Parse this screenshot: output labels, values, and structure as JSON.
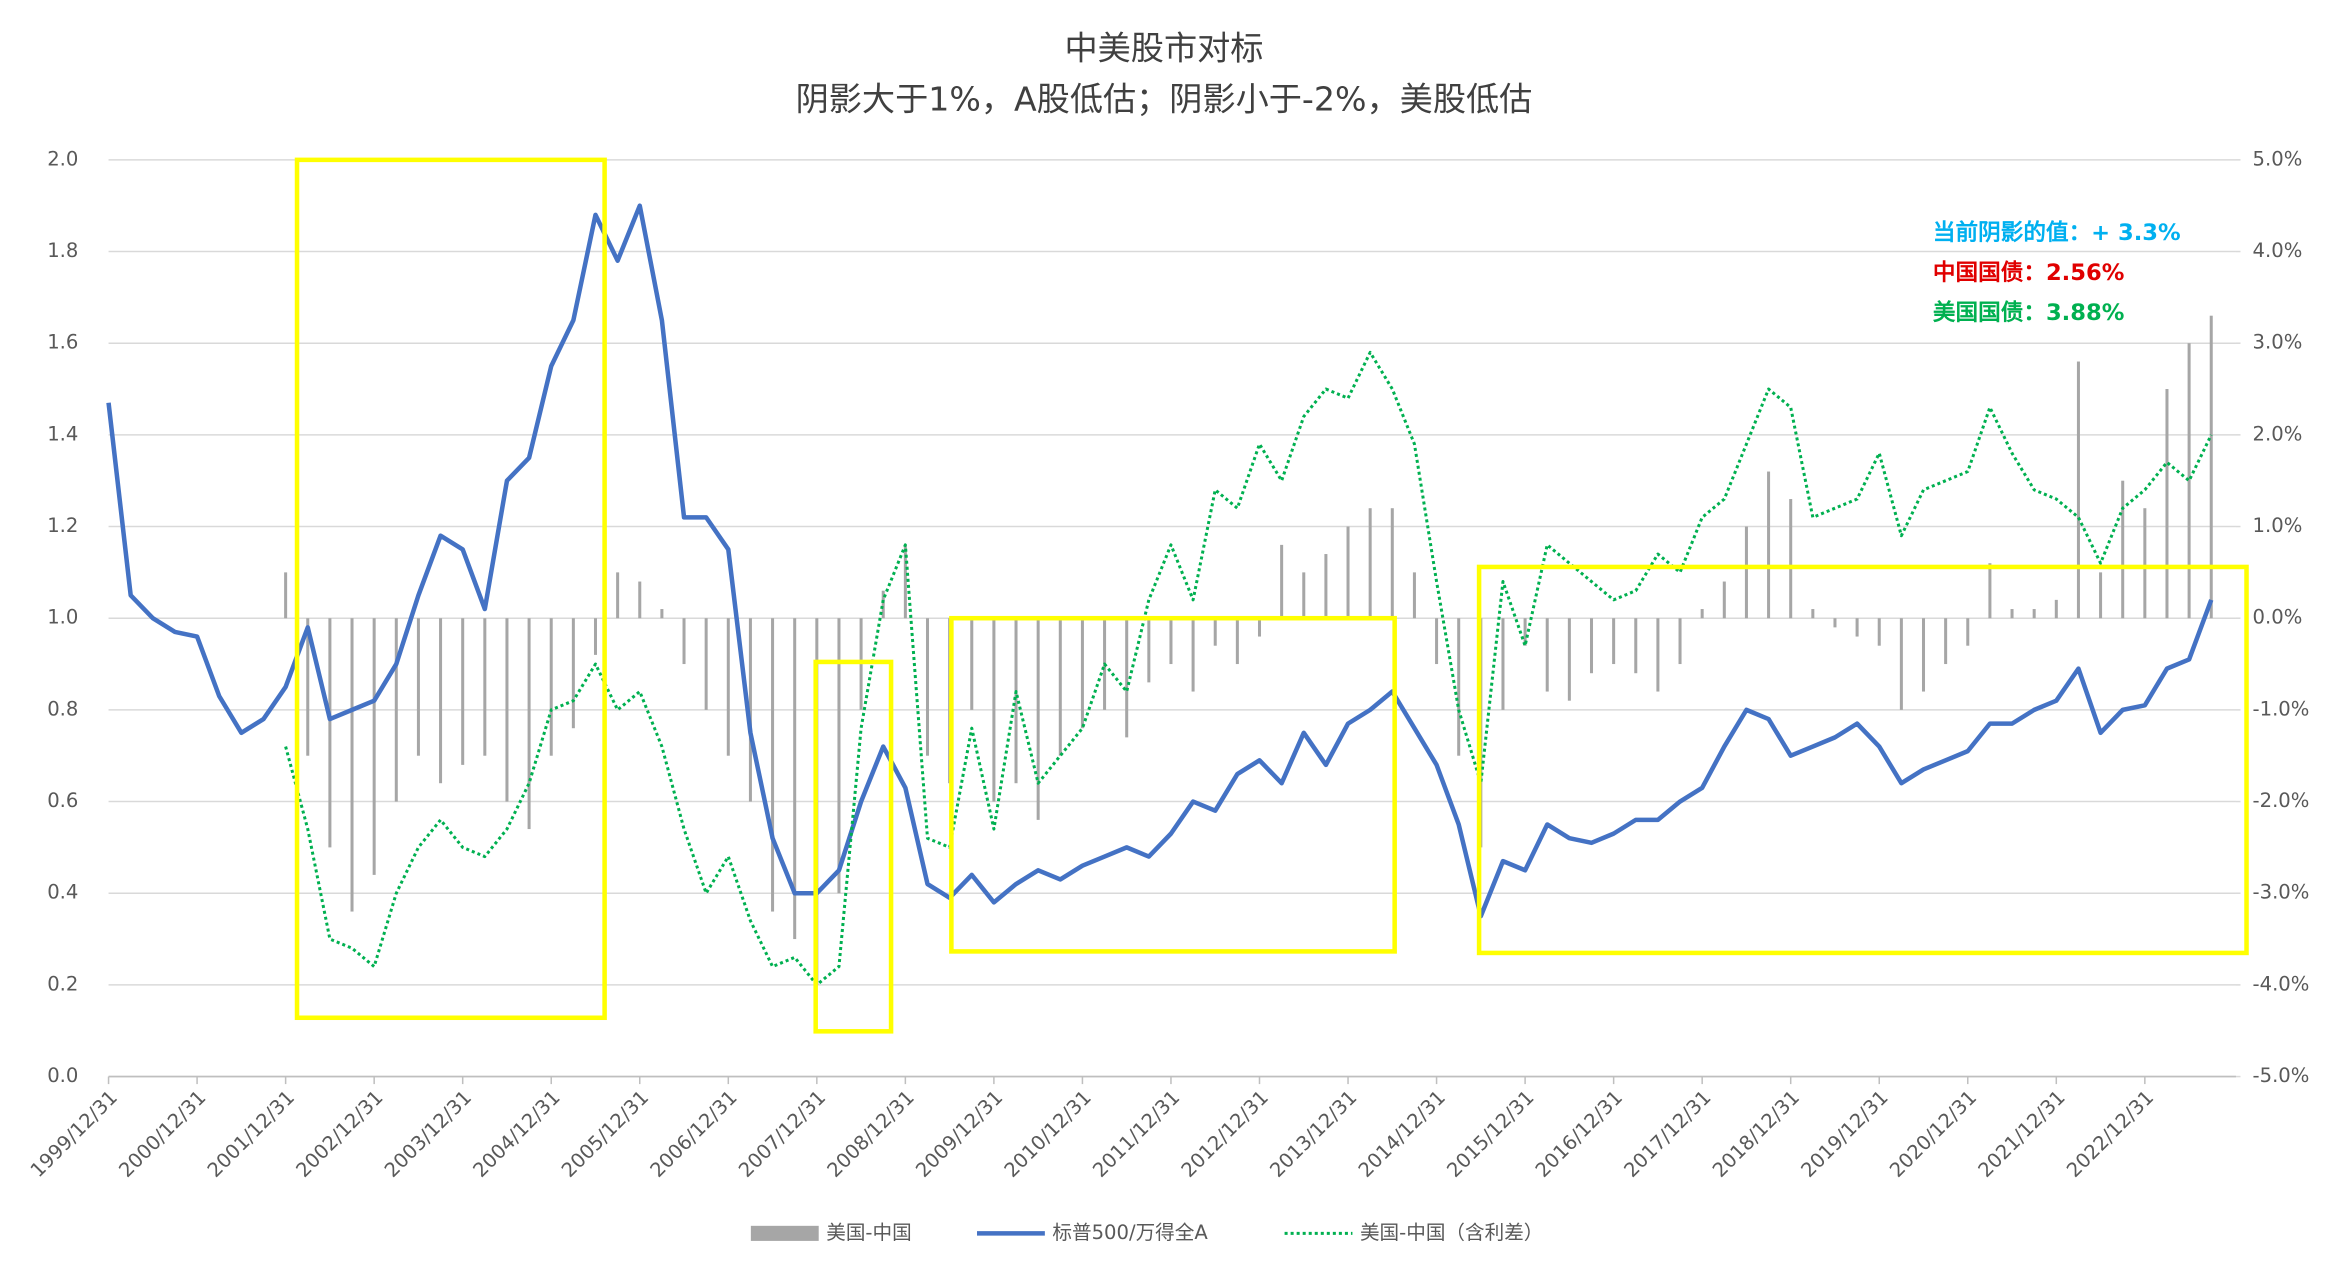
{
  "chart_data": {
    "type": "combo",
    "title": "中美股市对标",
    "subtitle": "阴影大于1%，A股低估；阴影小于-2%，美股低估",
    "categories": [
      "1999/12/31",
      null,
      null,
      null,
      "2000/12/31",
      null,
      null,
      null,
      "2001/12/31",
      null,
      null,
      null,
      "2002/12/31",
      null,
      null,
      null,
      "2003/12/31",
      null,
      null,
      null,
      "2004/12/31",
      null,
      null,
      null,
      "2005/12/31",
      null,
      null,
      null,
      "2006/12/31",
      null,
      null,
      null,
      "2007/12/31",
      null,
      null,
      null,
      "2008/12/31",
      null,
      null,
      null,
      "2009/12/31",
      null,
      null,
      null,
      "2010/12/31",
      null,
      null,
      null,
      "2011/12/31",
      null,
      null,
      null,
      "2012/12/31",
      null,
      null,
      null,
      "2013/12/31",
      null,
      null,
      null,
      "2014/12/31",
      null,
      null,
      null,
      "2015/12/31",
      null,
      null,
      null,
      "2016/12/31",
      null,
      null,
      null,
      "2017/12/31",
      null,
      null,
      null,
      "2018/12/31",
      null,
      null,
      null,
      "2019/12/31",
      null,
      null,
      null,
      "2020/12/31",
      null,
      null,
      null,
      "2021/12/31",
      null,
      null,
      null,
      "2022/12/31",
      null,
      null,
      null
    ],
    "series": [
      {
        "name": "美国-中国",
        "type": "bar",
        "axis": "y2",
        "color": "#a6a6a6",
        "values": [
          null,
          null,
          null,
          null,
          null,
          null,
          null,
          null,
          0.5,
          -1.5,
          -2.5,
          -3.2,
          -2.8,
          -2.0,
          -1.5,
          -1.8,
          -1.6,
          -1.5,
          -2.0,
          -2.3,
          -1.5,
          -1.2,
          -0.4,
          0.5,
          0.4,
          0.1,
          -0.5,
          -1.0,
          -1.5,
          -2.0,
          -3.2,
          -3.5,
          -4.0,
          -3.0,
          -1.0,
          0.3,
          0.8,
          -1.5,
          -1.8,
          -1.0,
          -2.0,
          -1.8,
          -2.2,
          -1.5,
          -1.2,
          -1.0,
          -1.3,
          -0.7,
          -0.5,
          -0.8,
          -0.3,
          -0.5,
          -0.2,
          0.8,
          0.5,
          0.7,
          1.0,
          1.2,
          1.2,
          0.5,
          -0.5,
          -1.5,
          -2.5,
          -1.0,
          -0.3,
          -0.8,
          -0.9,
          -0.6,
          -0.5,
          -0.6,
          -0.8,
          -0.5,
          0.1,
          0.4,
          1.0,
          1.6,
          1.3,
          0.1,
          -0.1,
          -0.2,
          -0.3,
          -1.0,
          -0.8,
          -0.5,
          -0.3,
          0.6,
          0.1,
          0.1,
          0.2,
          2.8,
          0.5,
          1.5,
          1.2,
          2.5,
          3.0,
          3.3
        ]
      },
      {
        "name": "标普500/万得全A",
        "type": "line",
        "color": "#4472c4",
        "values": [
          1.47,
          1.05,
          1.0,
          0.97,
          0.96,
          0.83,
          0.75,
          0.78,
          0.85,
          0.98,
          0.78,
          0.8,
          0.82,
          0.9,
          1.05,
          1.18,
          1.15,
          1.02,
          1.3,
          1.35,
          1.55,
          1.65,
          1.88,
          1.78,
          1.9,
          1.65,
          1.22,
          1.22,
          1.15,
          0.75,
          0.52,
          0.4,
          0.4,
          0.45,
          0.6,
          0.72,
          0.63,
          0.42,
          0.39,
          0.44,
          0.38,
          0.42,
          0.45,
          0.43,
          0.46,
          0.48,
          0.5,
          0.48,
          0.53,
          0.6,
          0.58,
          0.66,
          0.69,
          0.64,
          0.75,
          0.68,
          0.77,
          0.8,
          0.84,
          0.76,
          0.68,
          0.55,
          0.35,
          0.47,
          0.45,
          0.55,
          0.52,
          0.51,
          0.53,
          0.56,
          0.56,
          0.6,
          0.63,
          0.72,
          0.8,
          0.78,
          0.7,
          0.72,
          0.74,
          0.77,
          0.72,
          0.64,
          0.67,
          0.69,
          0.71,
          0.77,
          0.77,
          0.8,
          0.82,
          0.89,
          0.75,
          0.8,
          0.81,
          0.89,
          0.91,
          1.04
        ]
      },
      {
        "name": "美国-中国（含利差）",
        "type": "line",
        "style": "dotted",
        "axis": "y2",
        "color": "#00b050",
        "values": [
          null,
          null,
          null,
          null,
          null,
          null,
          null,
          null,
          -1.4,
          -2.3,
          -3.5,
          -3.6,
          -3.8,
          -3.0,
          -2.5,
          -2.2,
          -2.5,
          -2.6,
          -2.3,
          -1.8,
          -1.0,
          -0.9,
          -0.5,
          -1.0,
          -0.8,
          -1.4,
          -2.3,
          -3.0,
          -2.6,
          -3.3,
          -3.8,
          -3.7,
          -4.0,
          -3.8,
          -1.2,
          0.2,
          0.8,
          -2.4,
          -2.5,
          -1.2,
          -2.3,
          -0.8,
          -1.8,
          -1.5,
          -1.2,
          -0.5,
          -0.8,
          0.2,
          0.8,
          0.2,
          1.4,
          1.2,
          1.9,
          1.5,
          2.2,
          2.5,
          2.4,
          2.9,
          2.5,
          1.9,
          0.4,
          -1.0,
          -1.8,
          0.4,
          -0.3,
          0.8,
          0.6,
          0.4,
          0.2,
          0.3,
          0.7,
          0.5,
          1.1,
          1.3,
          1.9,
          2.5,
          2.3,
          1.1,
          1.2,
          1.3,
          1.8,
          0.9,
          1.4,
          1.5,
          1.6,
          2.3,
          1.8,
          1.4,
          1.3,
          1.1,
          0.6,
          1.2,
          1.4,
          1.7,
          1.5,
          2.0
        ]
      }
    ],
    "ylim": [
      0,
      2
    ],
    "yticks": [
      {
        "value": 0,
        "label": "0.0"
      },
      {
        "value": 0.2,
        "label": "0.2"
      },
      {
        "value": 0.4,
        "label": "0.4"
      },
      {
        "value": 0.6,
        "label": "0.6"
      },
      {
        "value": 0.8,
        "label": "0.8"
      },
      {
        "value": 1,
        "label": "1.0"
      },
      {
        "value": 1.2,
        "label": "1.2"
      },
      {
        "value": 1.4,
        "label": "1.4"
      },
      {
        "value": 1.6,
        "label": "1.6"
      },
      {
        "value": 1.8,
        "label": "1.8"
      },
      {
        "value": 2,
        "label": "2.0"
      }
    ],
    "y2lim": [
      -5,
      5
    ],
    "y2ticks": [
      {
        "value": -5,
        "label": "-5.0%"
      },
      {
        "value": -4,
        "label": "-4.0%"
      },
      {
        "value": -3,
        "label": "-3.0%"
      },
      {
        "value": -2,
        "label": "-2.0%"
      },
      {
        "value": -1,
        "label": "-1.0%"
      },
      {
        "value": 0,
        "label": "0.0%"
      },
      {
        "value": 1,
        "label": "1.0%"
      },
      {
        "value": 2,
        "label": "2.0%"
      },
      {
        "value": 3,
        "label": "3.0%"
      },
      {
        "value": 4,
        "label": "4.0%"
      },
      {
        "value": 5,
        "label": "5.0%"
      }
    ],
    "grid": true,
    "annotations": [
      {
        "text": "当前阴影的值：+ 3.3%",
        "color": "#00b0f0"
      },
      {
        "text": "中国国债：2.56%",
        "color": "#e00000"
      },
      {
        "text": "美国国债：3.88%",
        "color": "#00b050"
      }
    ]
  }
}
